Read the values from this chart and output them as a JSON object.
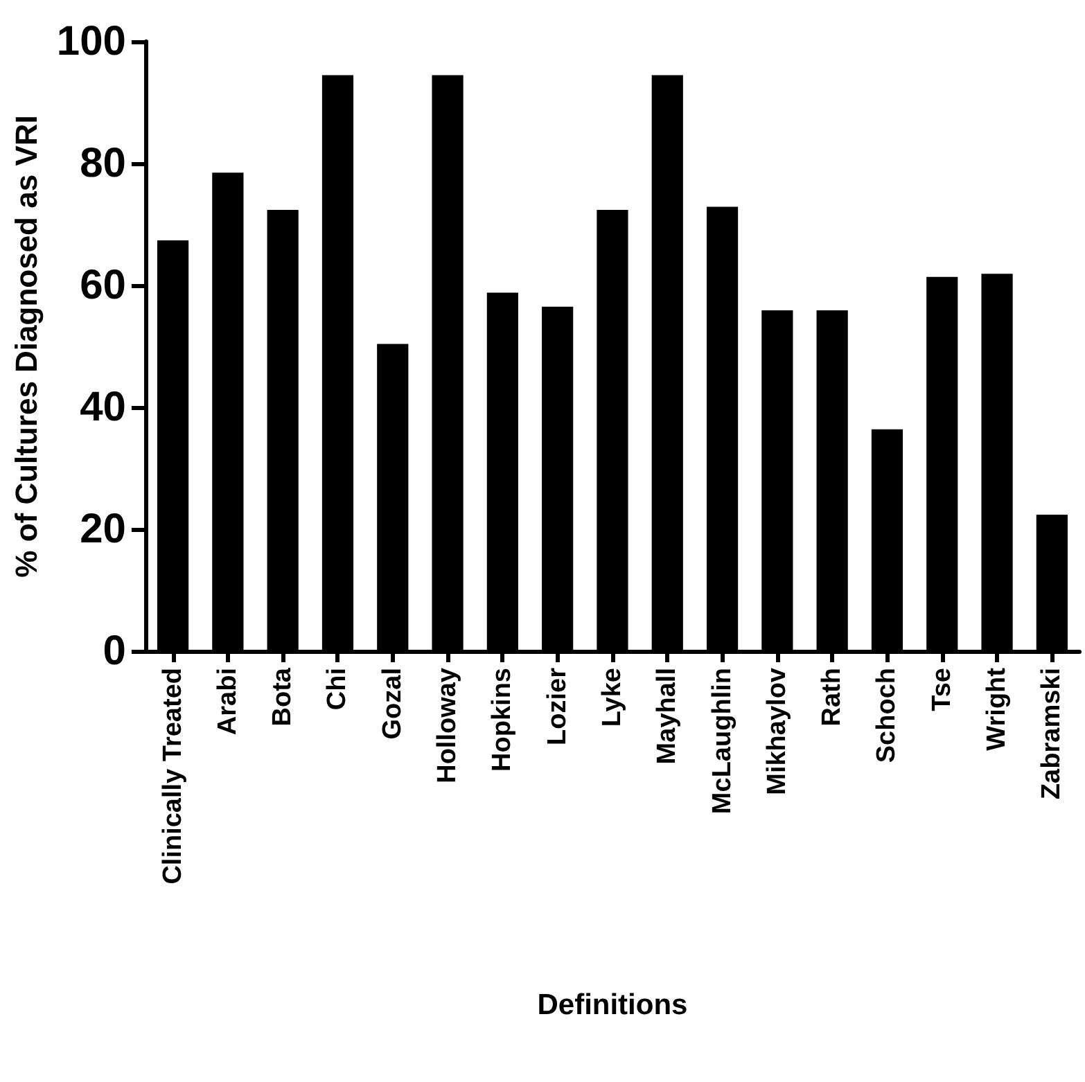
{
  "chart_data": {
    "type": "bar",
    "xlabel": "Definitions",
    "ylabel": "% of Cultures Diagnosed as VRI",
    "categories": [
      "Clinically Treated",
      "Arabi",
      "Bota",
      "Chi",
      "Gozal",
      "Holloway",
      "Hopkins",
      "Lozier",
      "Lyke",
      "Mayhall",
      "McLaughlin",
      "Mikhaylov",
      "Rath",
      "Schoch",
      "Tse",
      "Wright",
      "Zabramski"
    ],
    "values": [
      67.4,
      78.5,
      72.4,
      94.5,
      50.4,
      94.5,
      58.8,
      56.5,
      72.4,
      94.5,
      72.9,
      55.9,
      55.9,
      36.4,
      61.4,
      61.9,
      22.4
    ],
    "color": "#000000",
    "ylim": [
      0,
      100
    ],
    "yticks": [
      0,
      20,
      40,
      60,
      80,
      100
    ],
    "grid": false
  }
}
